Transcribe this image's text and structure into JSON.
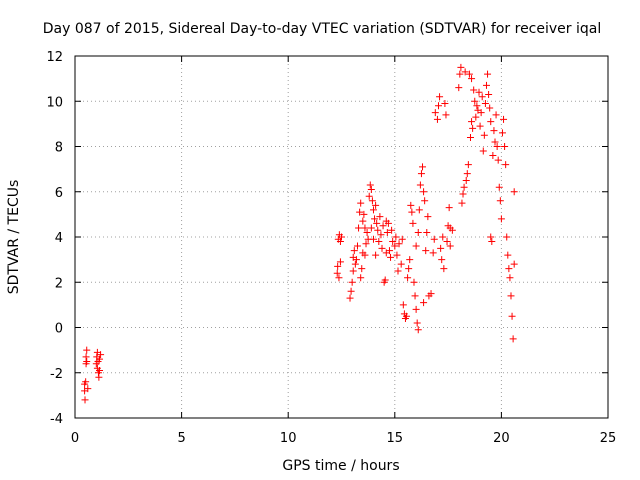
{
  "chart_data": {
    "type": "scatter",
    "title": "Day 087 of 2015, Sidereal Day-to-day VTEC variation (SDTVAR) for receiver iqal",
    "xlabel": "GPS time / hours",
    "ylabel": "SDTVAR / TECUs",
    "xlim": [
      0,
      25
    ],
    "ylim": [
      -4,
      12
    ],
    "x_ticks": [
      "0",
      "5",
      "10",
      "15",
      "20",
      "25"
    ],
    "y_ticks": [
      "-4",
      "-2",
      "0",
      "2",
      "4",
      "6",
      "8",
      "10",
      "12"
    ],
    "grid": true,
    "marker": "+",
    "color": "#ff0000",
    "series": [
      {
        "name": "SDTVAR",
        "points": [
          [
            0.45,
            -2.5
          ],
          [
            0.45,
            -2.8
          ],
          [
            0.47,
            -3.2
          ],
          [
            0.5,
            -2.4
          ],
          [
            0.52,
            -1.6
          ],
          [
            0.52,
            -1.3
          ],
          [
            0.55,
            -1.0
          ],
          [
            0.55,
            -1.5
          ],
          [
            0.6,
            -2.7
          ],
          [
            1.0,
            -1.6
          ],
          [
            1.02,
            -1.3
          ],
          [
            1.05,
            -1.1
          ],
          [
            1.05,
            -1.8
          ],
          [
            1.08,
            -1.5
          ],
          [
            1.1,
            -2.0
          ],
          [
            1.12,
            -2.2
          ],
          [
            1.15,
            -1.4
          ],
          [
            1.15,
            -1.9
          ],
          [
            1.2,
            -1.2
          ],
          [
            12.3,
            2.4
          ],
          [
            12.32,
            2.7
          ],
          [
            12.35,
            3.9
          ],
          [
            12.38,
            2.2
          ],
          [
            12.4,
            4.1
          ],
          [
            12.45,
            2.9
          ],
          [
            12.45,
            3.8
          ],
          [
            12.5,
            4.0
          ],
          [
            12.9,
            1.3
          ],
          [
            12.95,
            1.6
          ],
          [
            13.0,
            2.0
          ],
          [
            13.05,
            2.5
          ],
          [
            13.05,
            3.1
          ],
          [
            13.1,
            3.4
          ],
          [
            13.15,
            2.8
          ],
          [
            13.2,
            3.0
          ],
          [
            13.25,
            3.6
          ],
          [
            13.3,
            4.4
          ],
          [
            13.35,
            5.1
          ],
          [
            13.4,
            5.5
          ],
          [
            13.4,
            2.2
          ],
          [
            13.45,
            2.6
          ],
          [
            13.5,
            3.3
          ],
          [
            13.5,
            4.7
          ],
          [
            13.55,
            5.0
          ],
          [
            13.6,
            3.2
          ],
          [
            13.6,
            4.4
          ],
          [
            13.65,
            3.7
          ],
          [
            13.7,
            4.2
          ],
          [
            13.75,
            3.9
          ],
          [
            13.8,
            5.8
          ],
          [
            13.85,
            6.3
          ],
          [
            13.9,
            6.1
          ],
          [
            13.9,
            4.4
          ],
          [
            13.95,
            5.6
          ],
          [
            14.0,
            3.9
          ],
          [
            14.0,
            5.2
          ],
          [
            14.05,
            4.8
          ],
          [
            14.1,
            3.2
          ],
          [
            14.1,
            5.4
          ],
          [
            14.15,
            4.6
          ],
          [
            14.2,
            4.3
          ],
          [
            14.25,
            3.8
          ],
          [
            14.3,
            4.9
          ],
          [
            14.35,
            4.1
          ],
          [
            14.4,
            3.5
          ],
          [
            14.45,
            4.5
          ],
          [
            14.5,
            2.0
          ],
          [
            14.55,
            2.1
          ],
          [
            14.6,
            4.7
          ],
          [
            14.6,
            3.3
          ],
          [
            14.65,
            4.2
          ],
          [
            14.7,
            4.6
          ],
          [
            14.75,
            3.4
          ],
          [
            14.8,
            3.1
          ],
          [
            14.85,
            4.3
          ],
          [
            14.9,
            3.8
          ],
          [
            15.0,
            3.6
          ],
          [
            15.05,
            4.0
          ],
          [
            15.1,
            3.2
          ],
          [
            15.15,
            2.5
          ],
          [
            15.2,
            3.7
          ],
          [
            15.3,
            2.8
          ],
          [
            15.35,
            3.9
          ],
          [
            15.4,
            1.0
          ],
          [
            15.45,
            0.6
          ],
          [
            15.5,
            0.4
          ],
          [
            15.55,
            0.5
          ],
          [
            15.6,
            2.2
          ],
          [
            15.65,
            2.6
          ],
          [
            15.7,
            3.0
          ],
          [
            15.75,
            5.4
          ],
          [
            15.8,
            5.1
          ],
          [
            15.85,
            4.6
          ],
          [
            15.9,
            2.0
          ],
          [
            15.95,
            1.4
          ],
          [
            16.0,
            0.8
          ],
          [
            16.0,
            3.6
          ],
          [
            16.05,
            0.2
          ],
          [
            16.1,
            -0.1
          ],
          [
            16.1,
            4.2
          ],
          [
            16.15,
            5.2
          ],
          [
            16.2,
            6.3
          ],
          [
            16.25,
            6.8
          ],
          [
            16.3,
            7.1
          ],
          [
            16.35,
            6.0
          ],
          [
            16.35,
            1.1
          ],
          [
            16.4,
            5.6
          ],
          [
            16.45,
            3.4
          ],
          [
            16.5,
            4.2
          ],
          [
            16.55,
            4.9
          ],
          [
            16.6,
            1.4
          ],
          [
            16.7,
            1.5
          ],
          [
            16.8,
            3.3
          ],
          [
            16.85,
            3.9
          ],
          [
            16.9,
            9.5
          ],
          [
            17.0,
            9.2
          ],
          [
            17.05,
            9.8
          ],
          [
            17.1,
            10.2
          ],
          [
            17.15,
            3.5
          ],
          [
            17.2,
            3.0
          ],
          [
            17.25,
            4.0
          ],
          [
            17.3,
            2.6
          ],
          [
            17.35,
            9.9
          ],
          [
            17.4,
            9.4
          ],
          [
            17.45,
            3.8
          ],
          [
            17.5,
            4.5
          ],
          [
            17.55,
            5.3
          ],
          [
            17.6,
            4.4
          ],
          [
            17.6,
            3.6
          ],
          [
            17.7,
            4.3
          ],
          [
            18.0,
            10.6
          ],
          [
            18.05,
            11.2
          ],
          [
            18.1,
            11.5
          ],
          [
            18.15,
            5.5
          ],
          [
            18.2,
            5.9
          ],
          [
            18.25,
            6.2
          ],
          [
            18.3,
            11.3
          ],
          [
            18.35,
            6.5
          ],
          [
            18.4,
            6.8
          ],
          [
            18.45,
            7.2
          ],
          [
            18.5,
            11.2
          ],
          [
            18.55,
            8.4
          ],
          [
            18.6,
            9.1
          ],
          [
            18.6,
            11.0
          ],
          [
            18.65,
            8.8
          ],
          [
            18.7,
            10.5
          ],
          [
            18.75,
            10.0
          ],
          [
            18.8,
            9.3
          ],
          [
            18.85,
            9.8
          ],
          [
            18.9,
            9.6
          ],
          [
            18.95,
            10.4
          ],
          [
            19.0,
            8.9
          ],
          [
            19.05,
            9.5
          ],
          [
            19.1,
            10.2
          ],
          [
            19.15,
            7.8
          ],
          [
            19.2,
            8.5
          ],
          [
            19.25,
            9.9
          ],
          [
            19.3,
            10.7
          ],
          [
            19.35,
            11.2
          ],
          [
            19.4,
            10.3
          ],
          [
            19.45,
            9.7
          ],
          [
            19.5,
            9.1
          ],
          [
            19.5,
            4.0
          ],
          [
            19.55,
            3.8
          ],
          [
            19.6,
            7.6
          ],
          [
            19.65,
            8.7
          ],
          [
            19.7,
            8.2
          ],
          [
            19.75,
            9.4
          ],
          [
            19.8,
            8.0
          ],
          [
            19.85,
            7.4
          ],
          [
            19.9,
            6.2
          ],
          [
            19.95,
            5.6
          ],
          [
            20.0,
            4.8
          ],
          [
            20.05,
            8.6
          ],
          [
            20.1,
            9.2
          ],
          [
            20.15,
            8.0
          ],
          [
            20.2,
            7.2
          ],
          [
            20.25,
            4.0
          ],
          [
            20.3,
            3.2
          ],
          [
            20.35,
            2.6
          ],
          [
            20.4,
            2.2
          ],
          [
            20.45,
            1.4
          ],
          [
            20.5,
            0.5
          ],
          [
            20.55,
            -0.5
          ],
          [
            20.6,
            6.0
          ],
          [
            20.6,
            2.8
          ]
        ]
      }
    ]
  }
}
